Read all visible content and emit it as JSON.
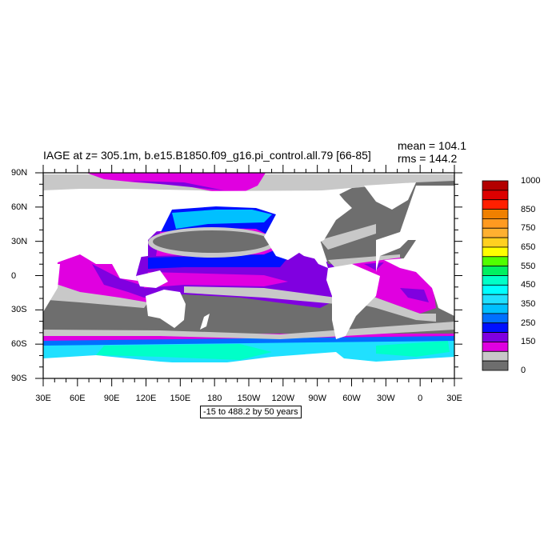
{
  "title": "IAGE at z= 305.1m, b.e15.B1850.f09_g16.pi_control.all.79 [66-85]",
  "stats": {
    "mean": "mean = 104.1",
    "rms": "rms = 144.2"
  },
  "info_box": "-15 to 488.2 by 50 years",
  "chart_data": {
    "type": "heatmap",
    "subtype": "global map (cylindrical equidistant)",
    "variable": "IAGE",
    "depth": "305.1m",
    "units": "years",
    "x_ticks": [
      "30E",
      "60E",
      "90E",
      "120E",
      "150E",
      "180",
      "150W",
      "120W",
      "90W",
      "60W",
      "30W",
      "0",
      "30E"
    ],
    "y_ticks": [
      "90N",
      "60N",
      "30N",
      "0",
      "30S",
      "60S",
      "90S"
    ],
    "xlim": [
      30,
      390
    ],
    "ylim": [
      -90,
      90
    ],
    "levels": [
      0,
      50,
      100,
      150,
      200,
      250,
      300,
      350,
      400,
      450,
      500,
      550,
      600,
      650,
      700,
      750,
      800,
      850,
      900,
      950,
      1000
    ],
    "colorbar_labels": [
      "1000",
      "850",
      "750",
      "650",
      "550",
      "450",
      "350",
      "250",
      "150",
      "0"
    ],
    "colorbar_colors": [
      "#b30000",
      "#dd0000",
      "#ff2000",
      "#f08000",
      "#ff9a20",
      "#ffb030",
      "#ffd020",
      "#ffff00",
      "#50ff00",
      "#00f060",
      "#00ffc8",
      "#00ffff",
      "#20e0ff",
      "#00c0ff",
      "#0070ff",
      "#0010ff",
      "#8000e0",
      "#e000e0",
      "#c8c8c8",
      "#6e6e6e"
    ],
    "data_range": {
      "min": -15,
      "max": 488.2
    },
    "mean": 104.1,
    "rms": 144.2
  }
}
